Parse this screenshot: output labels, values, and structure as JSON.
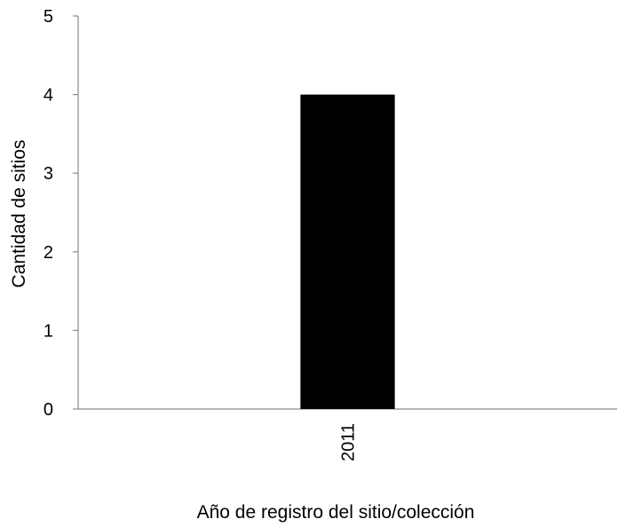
{
  "chart_data": {
    "type": "bar",
    "categories": [
      "2011"
    ],
    "values": [
      4
    ],
    "title": "",
    "xlabel": "Año de registro del sitio/colección",
    "ylabel": "Cantidad de sitios",
    "ylim": [
      0,
      5
    ],
    "yticks": [
      0,
      1,
      2,
      3,
      4,
      5
    ],
    "grid": false,
    "legend": "none",
    "bar_color": "#000000",
    "axis_color": "#8c8c8c"
  }
}
